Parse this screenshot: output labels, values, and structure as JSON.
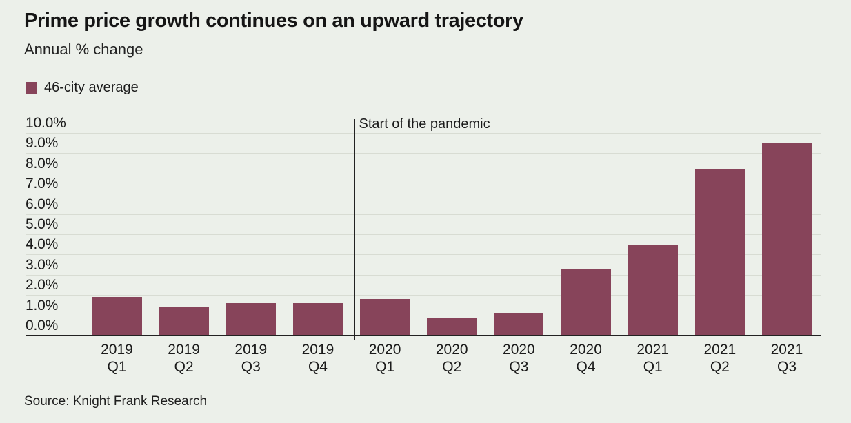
{
  "header": {
    "title": "Prime price growth continues on an upward trajectory",
    "subtitle": "Annual % change"
  },
  "legend": {
    "label": "46-city average",
    "swatch_color": "#87445A"
  },
  "annotation": {
    "label": "Start of the pandemic"
  },
  "source": {
    "text": "Source: Knight Frank Research"
  },
  "colors": {
    "background": "#ECF0EA",
    "bar": "#87445A",
    "gridline": "#D8DCD3",
    "axis": "#222222",
    "text": "#1B1B1B"
  },
  "chart_data": {
    "type": "bar",
    "title": "Prime price growth continues on an upward trajectory",
    "subtitle": "Annual % change",
    "source": "Source: Knight Frank Research",
    "series_name": "46-city average",
    "categories": [
      {
        "year": "2019",
        "quarter": "Q1"
      },
      {
        "year": "2019",
        "quarter": "Q2"
      },
      {
        "year": "2019",
        "quarter": "Q3"
      },
      {
        "year": "2019",
        "quarter": "Q4"
      },
      {
        "year": "2020",
        "quarter": "Q1"
      },
      {
        "year": "2020",
        "quarter": "Q2"
      },
      {
        "year": "2020",
        "quarter": "Q3"
      },
      {
        "year": "2020",
        "quarter": "Q4"
      },
      {
        "year": "2021",
        "quarter": "Q1"
      },
      {
        "year": "2021",
        "quarter": "Q2"
      },
      {
        "year": "2021",
        "quarter": "Q3"
      }
    ],
    "values": [
      1.9,
      1.4,
      1.6,
      1.6,
      1.8,
      0.9,
      1.1,
      3.3,
      4.5,
      8.2,
      9.5
    ],
    "ylim": [
      0,
      10
    ],
    "yticks": [
      {
        "value": 10,
        "label": "10.0%"
      },
      {
        "value": 9,
        "label": "9.0%"
      },
      {
        "value": 8,
        "label": "8.0%"
      },
      {
        "value": 7,
        "label": "7.0%"
      },
      {
        "value": 6,
        "label": "6.0%"
      },
      {
        "value": 5,
        "label": "5.0%"
      },
      {
        "value": 4,
        "label": "4.0%"
      },
      {
        "value": 3,
        "label": "3.0%"
      },
      {
        "value": 2,
        "label": "2.0%"
      },
      {
        "value": 1,
        "label": "1.0%"
      },
      {
        "value": 0,
        "label": "0.0%"
      }
    ],
    "grid": true,
    "legend_position": "top-left",
    "annotation": {
      "label": "Start of the pandemic",
      "after_category_index": 3
    }
  }
}
